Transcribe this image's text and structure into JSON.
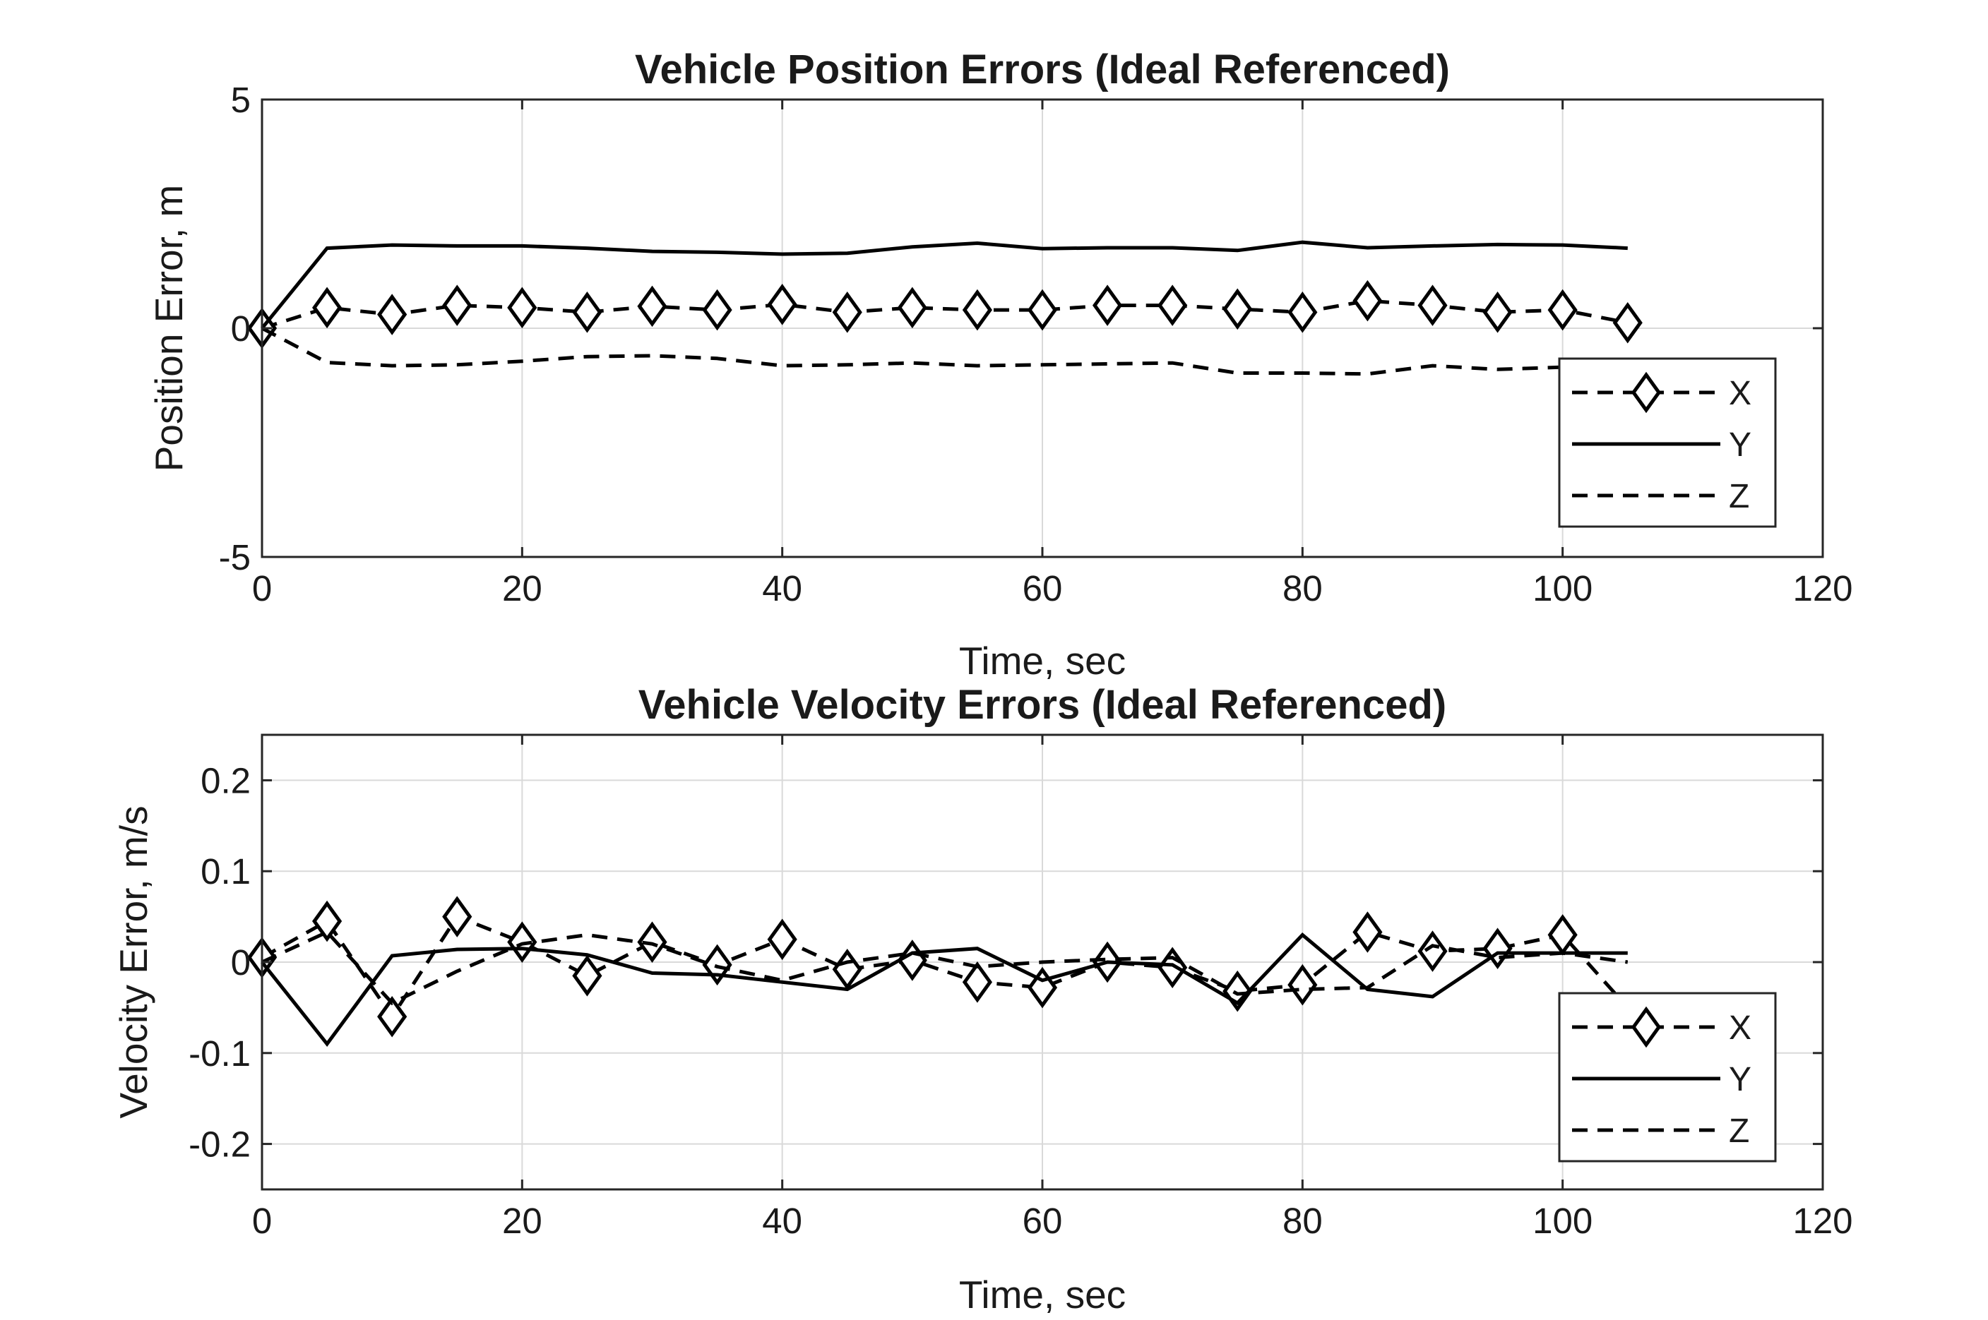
{
  "chart_data": [
    {
      "type": "line",
      "title": "Vehicle Position Errors (Ideal Referenced)",
      "xlabel": "Time, sec",
      "ylabel": "Position Error, m",
      "xlim": [
        0,
        120
      ],
      "ylim": [
        -5,
        5
      ],
      "xticks": [
        "0",
        "20",
        "40",
        "60",
        "80",
        "100",
        "120"
      ],
      "yticks": [
        "-5",
        "0",
        "5"
      ],
      "grid": true,
      "legend_position": "bottom-right",
      "x": [
        0,
        5,
        10,
        15,
        20,
        25,
        30,
        35,
        40,
        45,
        50,
        55,
        60,
        65,
        70,
        75,
        80,
        85,
        90,
        95,
        100,
        105
      ],
      "series": [
        {
          "name": "X",
          "style": "dashed-diamond",
          "values": [
            0,
            0.45,
            0.3,
            0.5,
            0.45,
            0.35,
            0.48,
            0.4,
            0.52,
            0.35,
            0.45,
            0.4,
            0.4,
            0.5,
            0.5,
            0.42,
            0.35,
            0.6,
            0.5,
            0.35,
            0.4,
            0.12
          ]
        },
        {
          "name": "Y",
          "style": "solid",
          "values": [
            0,
            1.75,
            1.82,
            1.8,
            1.8,
            1.75,
            1.68,
            1.66,
            1.62,
            1.64,
            1.78,
            1.86,
            1.74,
            1.76,
            1.76,
            1.7,
            1.88,
            1.76,
            1.8,
            1.83,
            1.82,
            1.75
          ]
        },
        {
          "name": "Z",
          "style": "dashed",
          "values": [
            0,
            -0.75,
            -0.82,
            -0.8,
            -0.72,
            -0.62,
            -0.6,
            -0.66,
            -0.82,
            -0.8,
            -0.76,
            -0.82,
            -0.8,
            -0.78,
            -0.76,
            -0.98,
            -0.98,
            -1.0,
            -0.82,
            -0.9,
            -0.85,
            -0.85
          ]
        }
      ]
    },
    {
      "type": "line",
      "title": "Vehicle Velocity Errors (Ideal Referenced)",
      "xlabel": "Time, sec",
      "ylabel": "Velocity Error, m/s",
      "xlim": [
        0,
        120
      ],
      "ylim": [
        -0.25,
        0.25
      ],
      "xticks": [
        "0",
        "20",
        "40",
        "60",
        "80",
        "100",
        "120"
      ],
      "yticks": [
        "-0.2",
        "-0.1",
        "0",
        "0.1",
        "0.2"
      ],
      "grid": true,
      "legend_position": "bottom-right",
      "x": [
        0,
        5,
        10,
        15,
        20,
        25,
        30,
        35,
        40,
        45,
        50,
        55,
        60,
        65,
        70,
        75,
        80,
        85,
        90,
        95,
        100,
        105
      ],
      "series": [
        {
          "name": "X",
          "style": "dashed-diamond",
          "values": [
            0.005,
            0.045,
            -0.06,
            0.05,
            0.022,
            -0.015,
            0.022,
            -0.003,
            0.025,
            -0.008,
            0.002,
            -0.022,
            -0.028,
            0.0,
            -0.006,
            -0.032,
            -0.025,
            0.033,
            0.012,
            0.015,
            0.03,
            -0.05
          ]
        },
        {
          "name": "Y",
          "style": "solid",
          "values": [
            0,
            -0.09,
            0.007,
            0.014,
            0.015,
            0.008,
            -0.012,
            -0.014,
            -0.022,
            -0.03,
            0.01,
            0.015,
            -0.02,
            0.0,
            -0.003,
            -0.045,
            0.03,
            -0.03,
            -0.038,
            0.01,
            0.01,
            0.01
          ]
        },
        {
          "name": "Z",
          "style": "dashed",
          "values": [
            0,
            0.033,
            -0.045,
            -0.01,
            0.02,
            0.03,
            0.02,
            -0.005,
            -0.02,
            0.0,
            0.01,
            -0.005,
            0.0,
            0.003,
            0.005,
            -0.035,
            -0.03,
            -0.028,
            0.018,
            0.005,
            0.01,
            0.0
          ]
        }
      ]
    }
  ]
}
